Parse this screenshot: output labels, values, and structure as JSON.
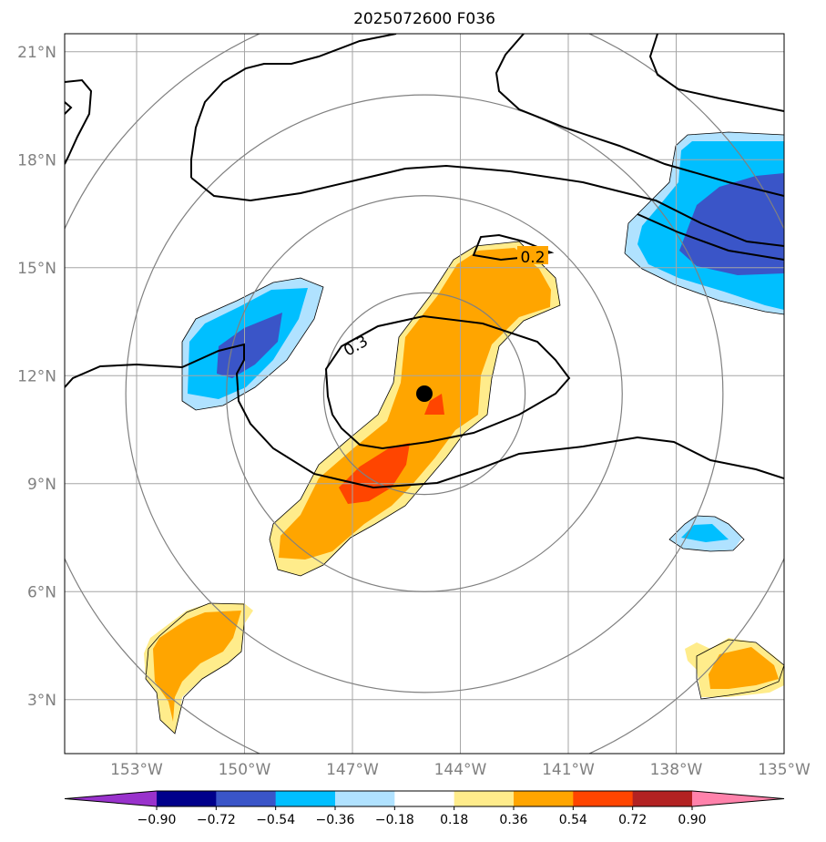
{
  "chart_data": {
    "type": "map",
    "title": "2025072600 F036",
    "lon_ticks": [
      {
        "value": -153,
        "label": "153°W"
      },
      {
        "value": -150,
        "label": "150°W"
      },
      {
        "value": -147,
        "label": "147°W"
      },
      {
        "value": -144,
        "label": "144°W"
      },
      {
        "value": -141,
        "label": "141°W"
      },
      {
        "value": -138,
        "label": "138°W"
      },
      {
        "value": -135,
        "label": "135°W"
      }
    ],
    "lat_ticks": [
      {
        "value": 3,
        "label": "3°N"
      },
      {
        "value": 6,
        "label": "6°N"
      },
      {
        "value": 9,
        "label": "9°N"
      },
      {
        "value": 12,
        "label": "12°N"
      },
      {
        "value": 15,
        "label": "15°N"
      },
      {
        "value": 18,
        "label": "18°N"
      },
      {
        "value": 21,
        "label": "21°N"
      }
    ],
    "xlim": [
      -155,
      -135
    ],
    "ylim": [
      1.5,
      21.5
    ],
    "grid": true,
    "center_marker": {
      "lon": -145.0,
      "lat": 11.5
    },
    "range_rings_radius_deg": [
      2.8,
      5.5,
      8.3,
      11.0
    ],
    "line_contours": [
      {
        "value": 0.2,
        "label": "0.2"
      },
      {
        "value": 0.3,
        "label": "0.3"
      }
    ],
    "colorbar": {
      "levels": [
        "−0.90",
        "−0.72",
        "−0.54",
        "−0.36",
        "−0.18",
        "0.18",
        "0.36",
        "0.54",
        "0.72",
        "0.90"
      ],
      "colors": [
        "#9932cc",
        "#00008b",
        "#3a55c8",
        "#00bfff",
        "#b0e2ff",
        "#ffffff",
        "#ffec8b",
        "#ffa500",
        "#ff4500",
        "#b22222",
        "#ff82ab"
      ],
      "extend": "both"
    }
  }
}
